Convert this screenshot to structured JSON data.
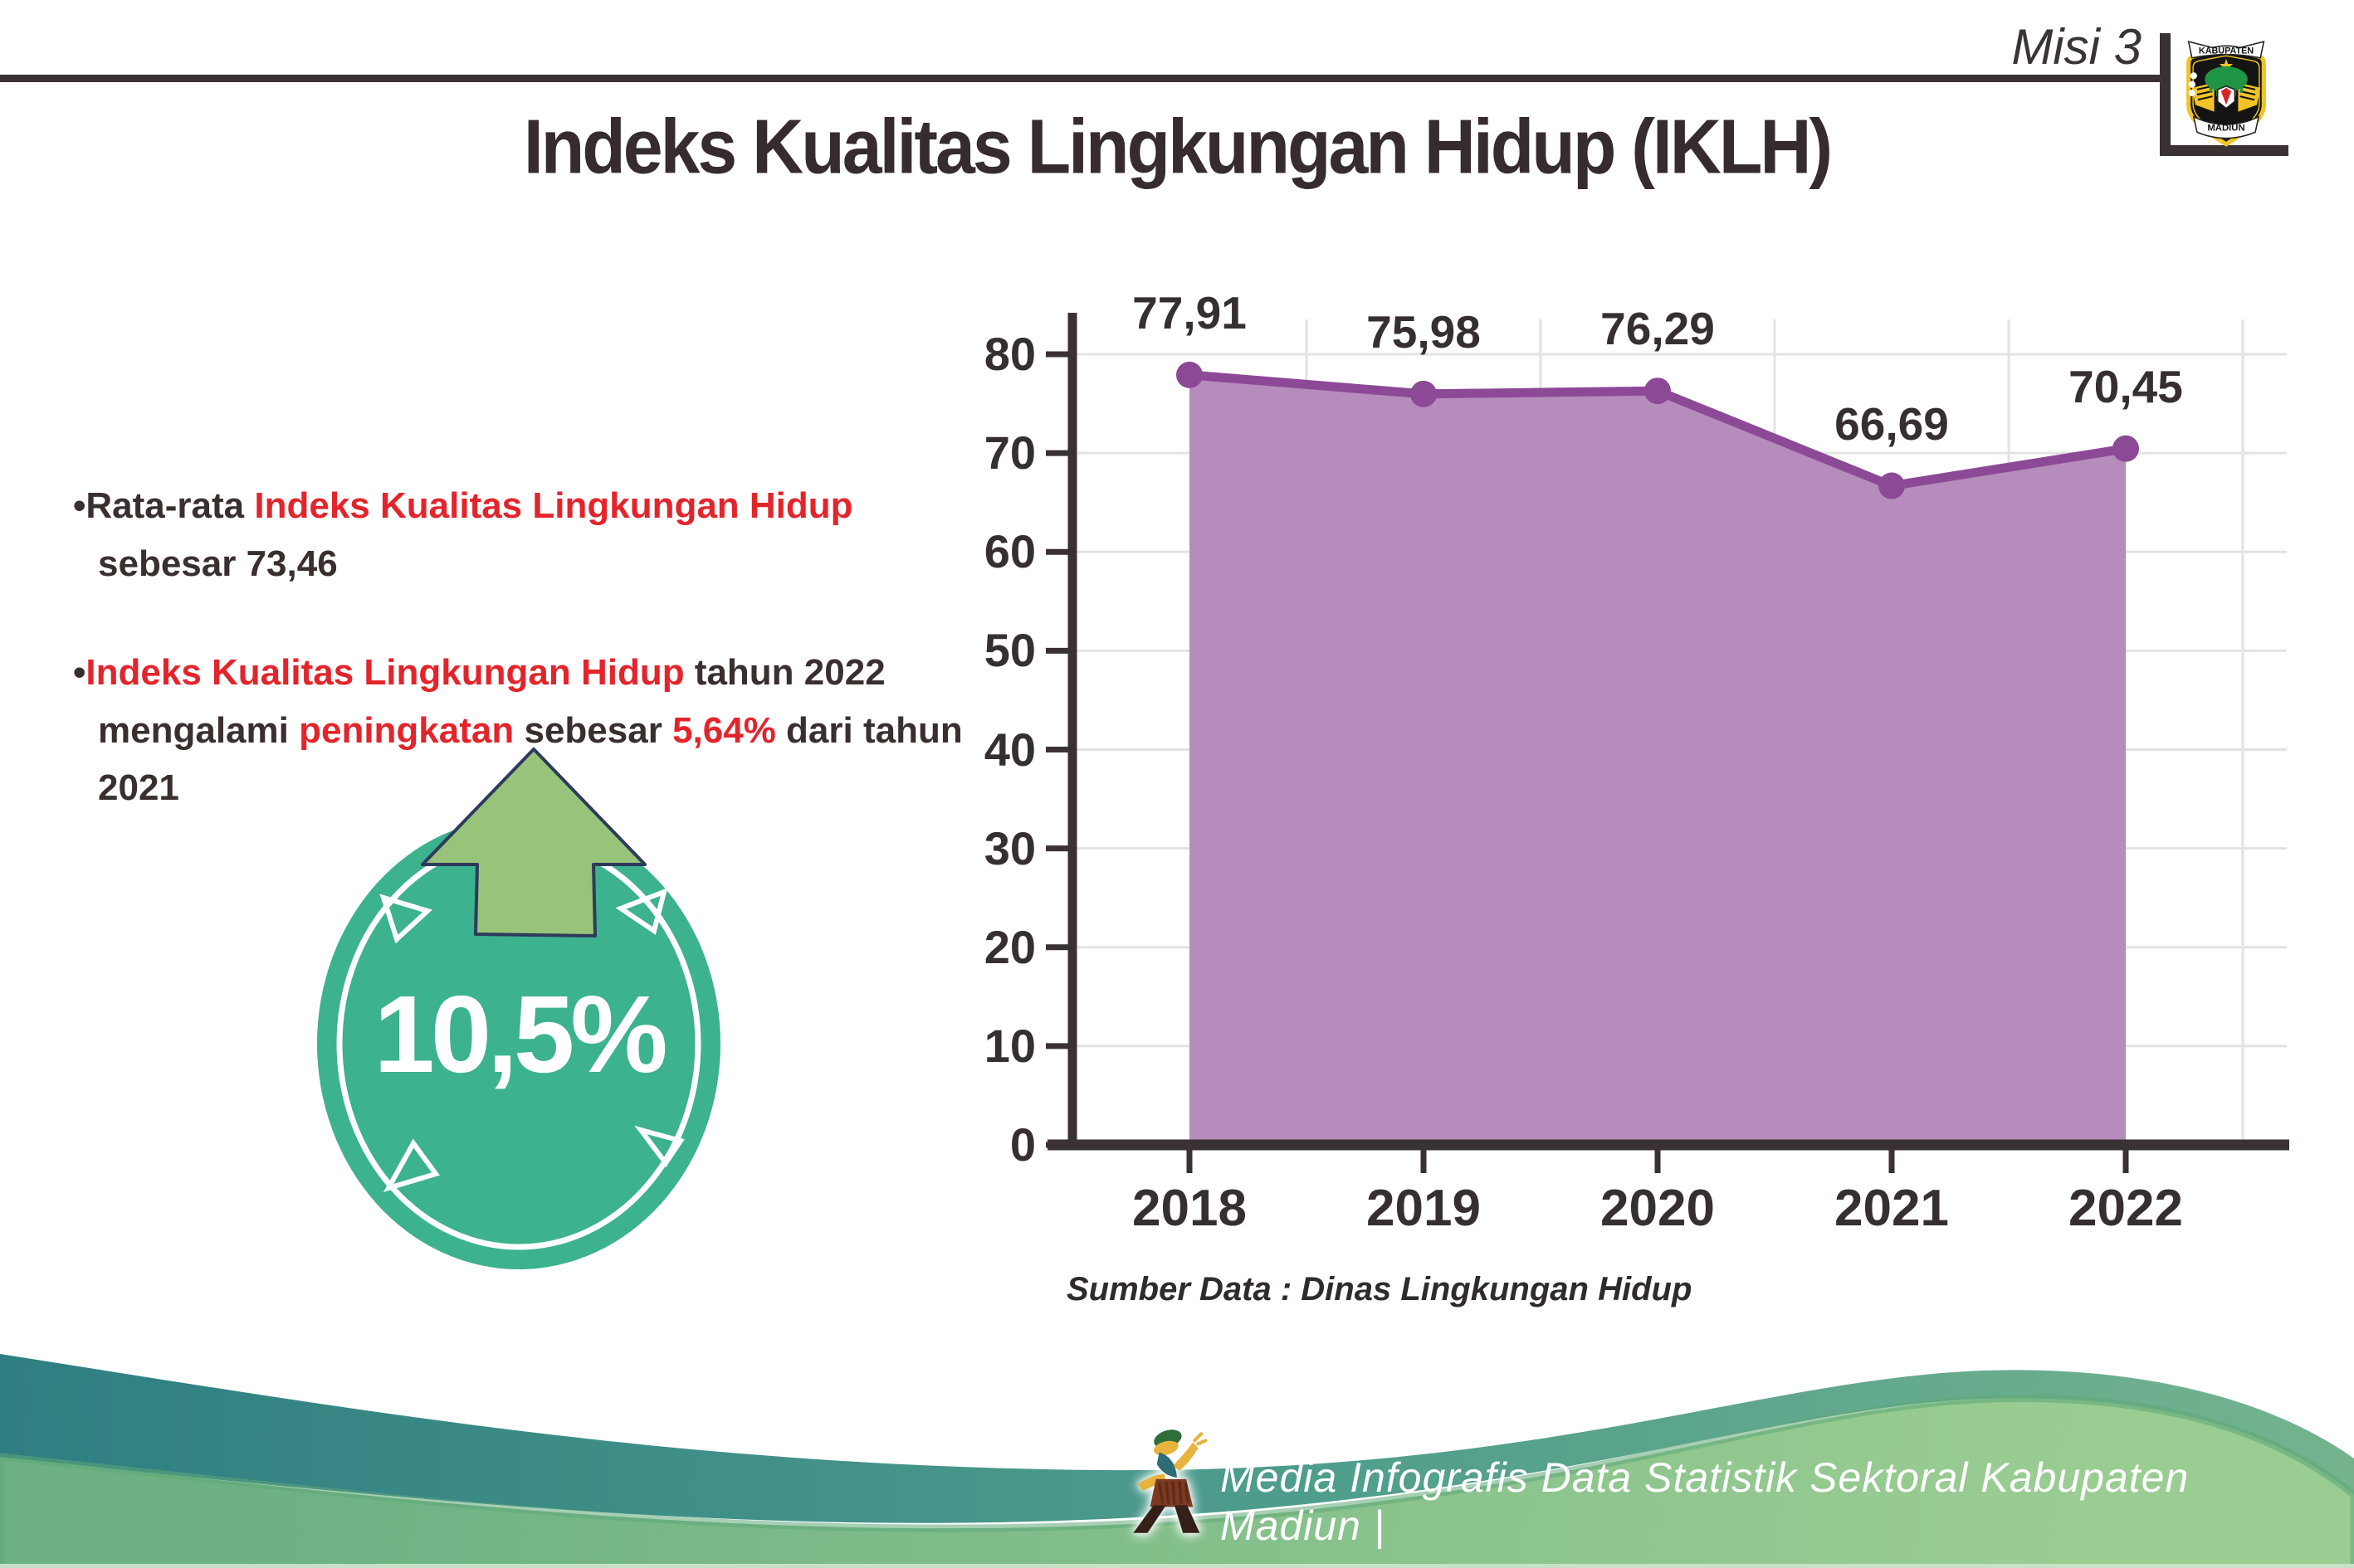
{
  "header": {
    "misi_label": "Misi 3",
    "logo": {
      "top_banner": "KABUPATEN",
      "bottom_banner": "MADIUN"
    }
  },
  "title": "Indeks Kualitas Lingkungan Hidup (IKLH)",
  "insights": {
    "bullet1": {
      "seg1": "•Rata-rata ",
      "seg2": "Indeks Kualitas Lingkungan Hidup",
      "seg3": " sebesar 73,46"
    },
    "bullet2": {
      "seg1": "•",
      "seg2": "Indeks Kualitas Lingkungan Hidup",
      "seg3": " tahun 2022 mengalami ",
      "seg4": "peningkatan",
      "seg5": " sebesar ",
      "seg6": "5,64%",
      "seg7": " dari tahun 2021"
    }
  },
  "badge": {
    "value": "10,5%",
    "direction": "up"
  },
  "chart": {
    "source_note": "Sumber Data : Dinas Lingkungan Hidup"
  },
  "chart_data": {
    "type": "area",
    "title": "Indeks Kualitas Lingkungan Hidup (IKLH) 2018-2022",
    "categories": [
      "2018",
      "2019",
      "2020",
      "2021",
      "2022"
    ],
    "values": [
      77.91,
      75.98,
      76.29,
      66.69,
      70.45
    ],
    "value_labels": [
      "77,91",
      "75,98",
      "76,29",
      "66,69",
      "70,45"
    ],
    "y_ticks": [
      0,
      10,
      20,
      30,
      40,
      50,
      60,
      70,
      80
    ],
    "ylim": [
      0,
      80
    ],
    "xlabel": "",
    "ylabel": "",
    "grid": true,
    "legend": "none",
    "area_color": "#b68cbc",
    "line_color": "#8c4a96",
    "axis_color": "#3a3133",
    "grid_color": "#e4e2e2"
  },
  "footer": {
    "credit": "Media Infografis Data Statistik Sektoral Kabupaten Madiun |"
  }
}
